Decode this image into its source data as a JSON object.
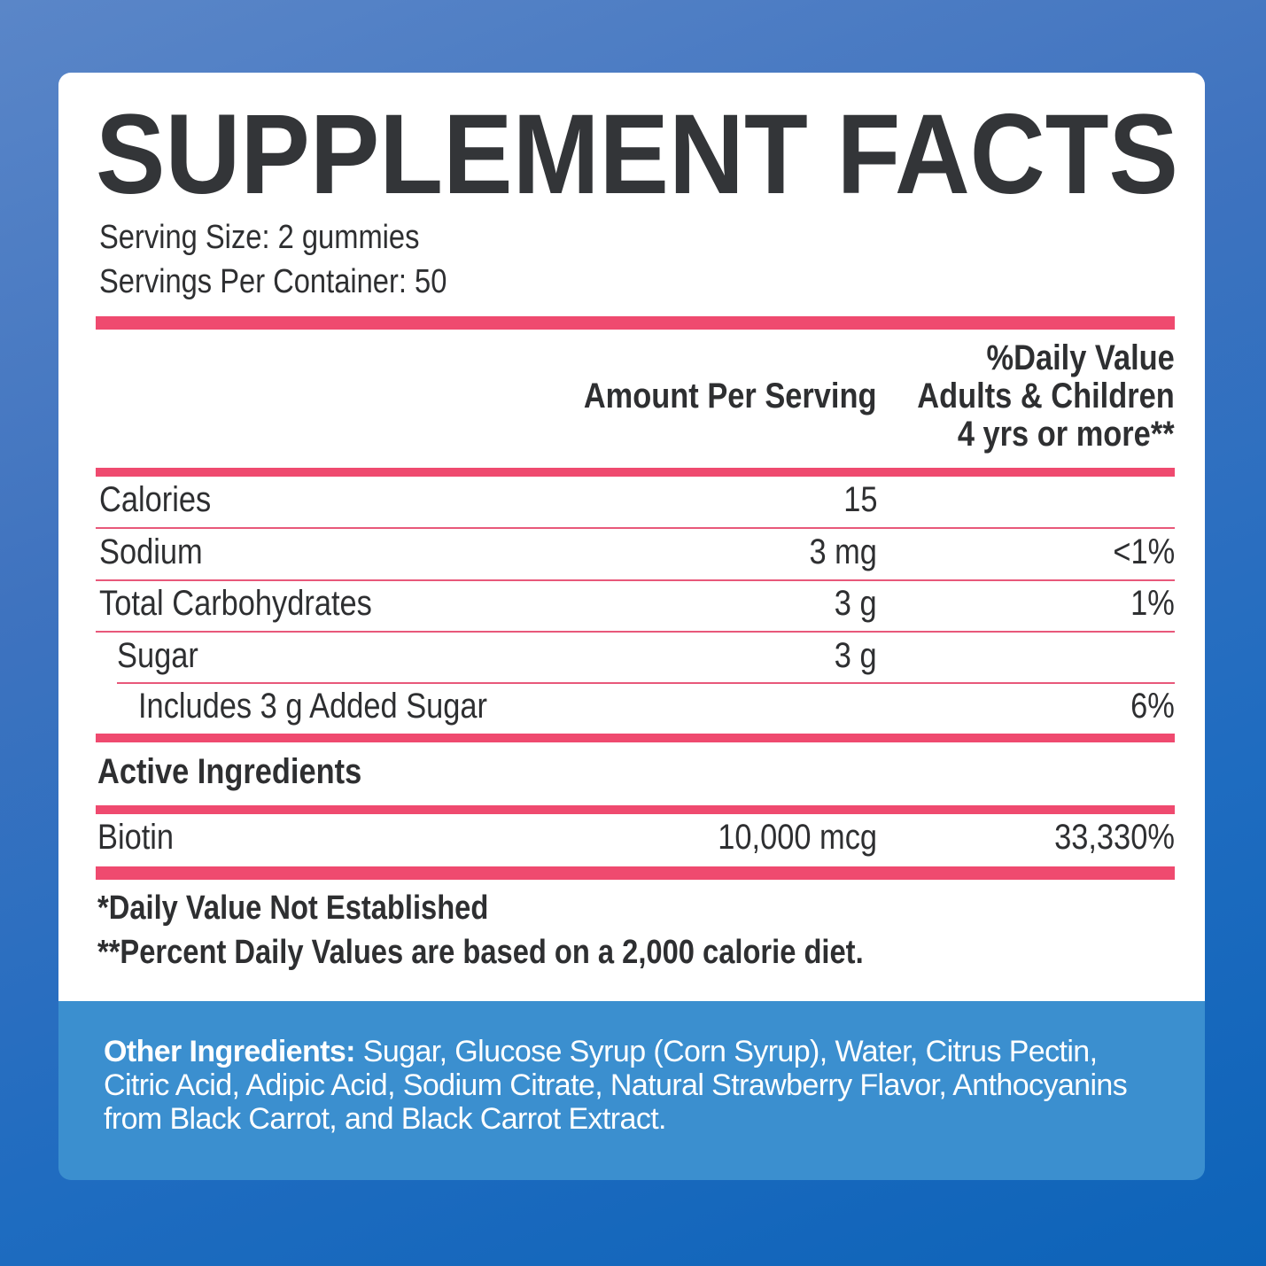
{
  "title": "SUPPLEMENT FACTS",
  "serving_size": "Serving Size: 2 gummies",
  "servings_per_container": "Servings Per Container: 50",
  "table": {
    "header": {
      "amount": "Amount Per Serving",
      "daily_value": [
        "%Daily Value",
        "Adults & Children",
        "4 yrs or more**"
      ]
    },
    "rows": [
      {
        "name": "Calories",
        "amount": "15"
      },
      {
        "name": "Sodium",
        "amount": "3 mg",
        "daily_value": "<1%"
      },
      {
        "name": "Total Carbohydrates",
        "amount": "3 g",
        "daily_value": "1%"
      },
      {
        "name": "Sugar",
        "amount": "3 g"
      },
      {
        "name": "Includes 3 g Added Sugar",
        "daily_value": "6%"
      }
    ],
    "active_ingredients": {
      "heading": "Active Ingredients",
      "rows": [
        {
          "name": "Biotin",
          "amount": "10,000 mcg",
          "daily_value": "33,330%"
        }
      ]
    }
  },
  "footnotes": [
    "*Daily Value Not Established",
    "**Percent Daily Values are based on a 2,000 calorie diet."
  ],
  "other_ingredients": {
    "label": "Other Ingredients:",
    "text": "Sugar, Glucose Syrup (Corn Syrup), Water, Citrus Pectin, Citric Acid, Adipic Acid, Sodium Citrate, Natural Strawberry Flavor, Anthocyanins from Black Carrot, and Black Carrot Extract."
  }
}
